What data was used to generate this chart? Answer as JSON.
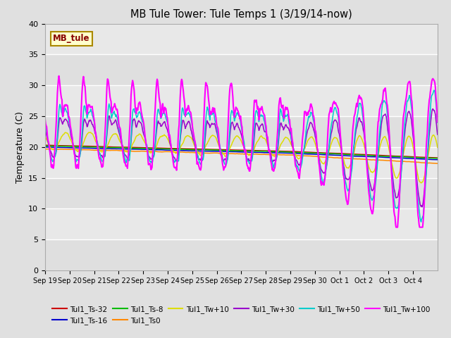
{
  "title": "MB Tule Tower: Tule Temps 1 (3/19/14-now)",
  "ylabel": "Temperature (C)",
  "ylim": [
    0,
    40
  ],
  "yticks": [
    0,
    5,
    10,
    15,
    20,
    25,
    30,
    35,
    40
  ],
  "fig_bg": "#e0e0e0",
  "plot_bg": "#e8e8e8",
  "annotation_text": "MB_tule",
  "annotation_bg": "#ffffcc",
  "annotation_edge": "#aa8800",
  "annotation_text_color": "#880000",
  "series_order": [
    "Tul1_Ts-32",
    "Tul1_Ts-16",
    "Tul1_Ts-8",
    "Tul1_Ts0",
    "Tul1_Tw+10",
    "Tul1_Tw+30",
    "Tul1_Tw+50",
    "Tul1_Tw+100"
  ],
  "series_colors": {
    "Tul1_Ts-32": "#cc0000",
    "Tul1_Ts-16": "#0000cc",
    "Tul1_Ts-8": "#00bb00",
    "Tul1_Ts0": "#ff8800",
    "Tul1_Tw+10": "#dddd00",
    "Tul1_Tw+30": "#9900cc",
    "Tul1_Tw+50": "#00cccc",
    "Tul1_Tw+100": "#ff00ff"
  },
  "xticklabels": [
    "Sep 19",
    "Sep 20",
    "Sep 21",
    "Sep 22",
    "Sep 23",
    "Sep 24",
    "Sep 25",
    "Sep 26",
    "Sep 27",
    "Sep 28",
    "Sep 29",
    "Sep 30",
    "Oct 1",
    "Oct 2",
    "Oct 3",
    "Oct 4"
  ],
  "n_days": 16,
  "pts_per_day": 48
}
